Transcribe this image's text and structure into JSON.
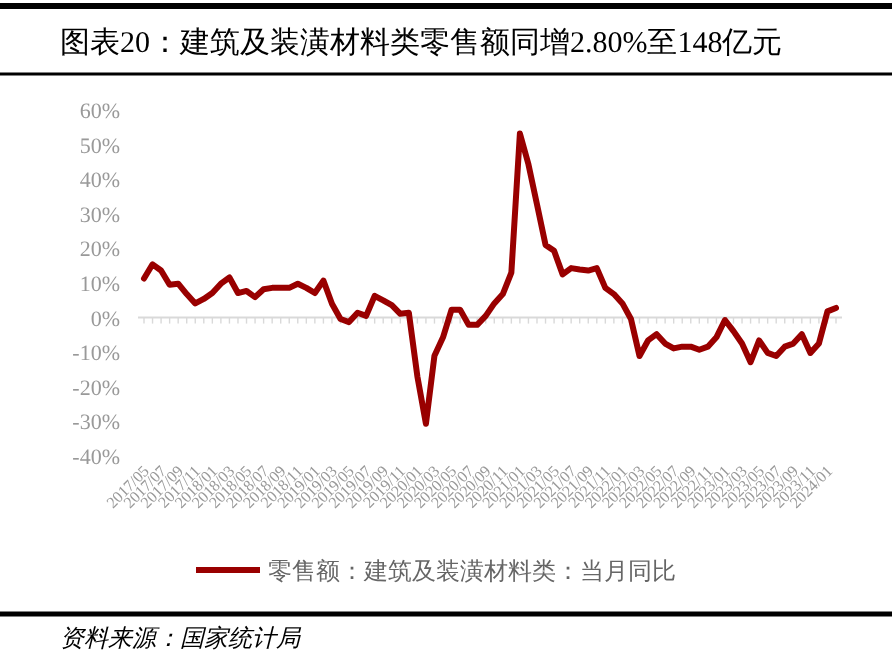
{
  "chart_data": {
    "type": "line",
    "title": "图表20：建筑及装潢材料类零售额同增2.80%至148亿元",
    "categories": [
      "2017/05",
      null,
      "2017/07",
      null,
      "2017/09",
      null,
      "2017/11",
      null,
      "2018/01",
      null,
      "2018/03",
      null,
      "2018/05",
      null,
      "2018/07",
      null,
      "2018/09",
      null,
      "2018/11",
      null,
      "2019/01",
      null,
      "2019/03",
      null,
      "2019/05",
      null,
      "2019/07",
      null,
      "2019/09",
      null,
      "2019/11",
      null,
      "2020/01",
      null,
      "2020/03",
      null,
      "2020/05",
      null,
      "2020/07",
      null,
      "2020/09",
      null,
      "2020/11",
      null,
      "2021/01",
      null,
      "2021/03",
      null,
      "2021/05",
      null,
      "2021/07",
      null,
      "2021/09",
      null,
      "2021/11",
      null,
      "2022/01",
      null,
      "2022/03",
      null,
      "2022/05",
      null,
      "2022/07",
      null,
      "2022/09",
      null,
      "2022/11",
      null,
      "2023/01",
      null,
      "2023/03",
      null,
      "2023/05",
      null,
      "2023/07",
      null,
      "2023/09",
      null,
      "2023/11",
      null,
      "2024/01",
      null
    ],
    "series": [
      {
        "name": "零售额：建筑及装潢材料类：当月同比",
        "color": "#990000",
        "values": [
          11.3,
          15.4,
          13.6,
          9.5,
          9.8,
          6.8,
          4.1,
          5.4,
          7.1,
          9.8,
          11.6,
          7.1,
          7.7,
          5.9,
          8.2,
          8.6,
          8.6,
          8.6,
          9.8,
          8.6,
          7.1,
          10.7,
          4,
          -0.4,
          -1.3,
          1.4,
          0.5,
          6.3,
          5,
          3.6,
          1.1,
          1.4,
          -17,
          -30.7,
          -11,
          -5.7,
          2.3,
          2.3,
          -2.1,
          -2.1,
          0.5,
          4.1,
          6.8,
          13,
          53.2,
          44.3,
          32.7,
          21,
          19.3,
          12.5,
          14.3,
          13.9,
          13.6,
          14.3,
          8.6,
          6.8,
          4.1,
          -0.4,
          -11.1,
          -6.6,
          -4.8,
          -7.5,
          -8.9,
          -8.4,
          -8.4,
          -9.3,
          -8.4,
          -5.7,
          -0.7,
          -3.9,
          -7.5,
          -12.9,
          -6.6,
          -10.2,
          -11.1,
          -8.4,
          -7.5,
          -4.8,
          -10.2,
          -7.5,
          1.8,
          2.8
        ]
      }
    ],
    "ylim": [
      -40,
      60
    ],
    "yticks": [
      {
        "value": -40,
        "label": "-40%"
      },
      {
        "value": -30,
        "label": "-30%"
      },
      {
        "value": -20,
        "label": "-20%"
      },
      {
        "value": -10,
        "label": "-10%"
      },
      {
        "value": 0,
        "label": "0%"
      },
      {
        "value": 10,
        "label": "10%"
      },
      {
        "value": 20,
        "label": "20%"
      },
      {
        "value": 30,
        "label": "30%"
      },
      {
        "value": 40,
        "label": "40%"
      },
      {
        "value": 50,
        "label": "50%"
      },
      {
        "value": 60,
        "label": "60%"
      }
    ],
    "legend": "bottom",
    "annotations": [
      "资料来源：国家统计局"
    ]
  }
}
